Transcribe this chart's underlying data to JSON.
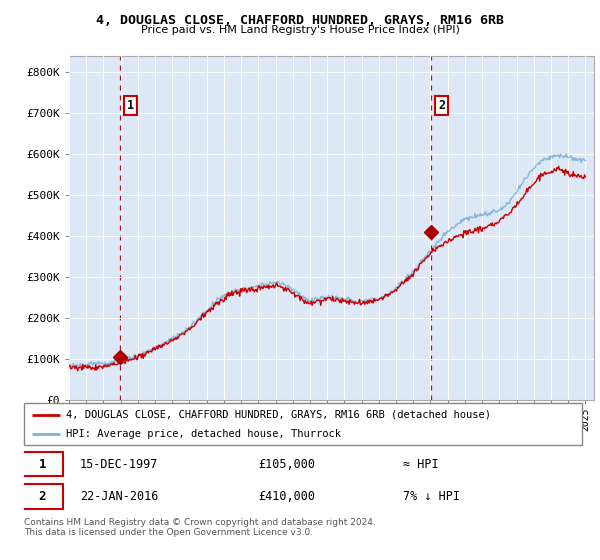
{
  "title": "4, DOUGLAS CLOSE, CHAFFORD HUNDRED, GRAYS, RM16 6RB",
  "subtitle": "Price paid vs. HM Land Registry's House Price Index (HPI)",
  "sale1_date": "15-DEC-1997",
  "sale1_price": 105000,
  "sale1_note": "≈ HPI",
  "sale2_date": "22-JAN-2016",
  "sale2_price": 410000,
  "sale2_note": "7% ↓ HPI",
  "legend_line1": "4, DOUGLAS CLOSE, CHAFFORD HUNDRED, GRAYS, RM16 6RB (detached house)",
  "legend_line2": "HPI: Average price, detached house, Thurrock",
  "footer": "Contains HM Land Registry data © Crown copyright and database right 2024.\nThis data is licensed under the Open Government Licence v3.0.",
  "hpi_color": "#7fb0d8",
  "price_color": "#cc0000",
  "marker_color": "#aa0000",
  "vline_color": "#cc0000",
  "ylabel_ticks": [
    "£0",
    "£100K",
    "£200K",
    "£300K",
    "£400K",
    "£500K",
    "£600K",
    "£700K",
    "£800K"
  ],
  "ytick_values": [
    0,
    100000,
    200000,
    300000,
    400000,
    500000,
    600000,
    700000,
    800000
  ],
  "xlim": [
    1995.0,
    2025.5
  ],
  "ylim": [
    0,
    840000
  ],
  "background_color": "#ffffff",
  "plot_bg_color": "#dce8f5"
}
